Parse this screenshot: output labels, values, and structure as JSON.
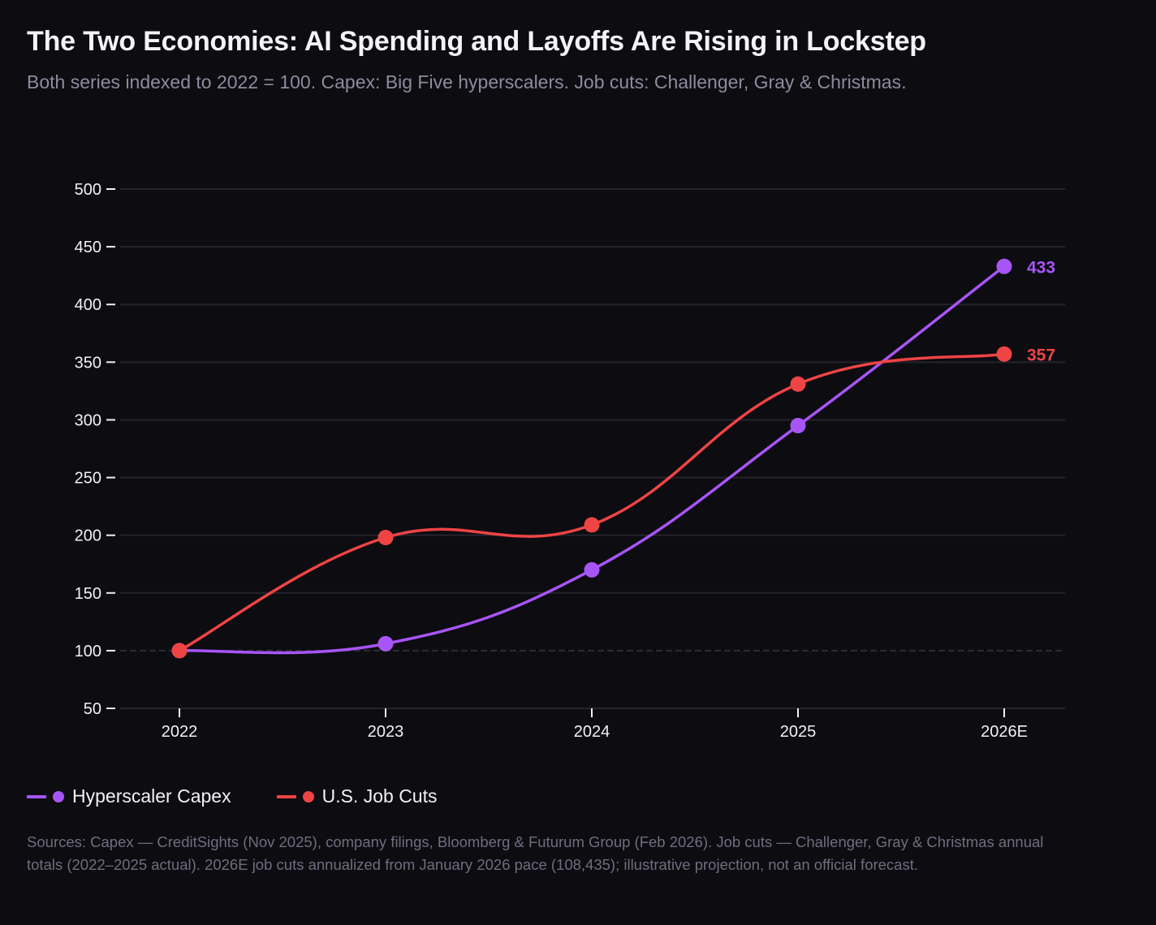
{
  "header": {
    "title": "The Two Economies: AI Spending and Layoffs Are Rising in Lockstep",
    "subtitle": "Both series indexed to 2022 = 100. Capex: Big Five hyperscalers. Job cuts: Challenger, Gray & Christmas."
  },
  "colors": {
    "background": "#0c0c11",
    "capex": "#a855f7",
    "job_cuts": "#ef4444",
    "grid": "#24242c",
    "axis_text": "#f2f2f5",
    "muted_text": "#8c8c9e"
  },
  "legend": {
    "items": [
      {
        "label": "Hyperscaler Capex",
        "color": "#a855f7"
      },
      {
        "label": "U.S. Job Cuts",
        "color": "#ef4444"
      }
    ]
  },
  "footer": {
    "sources": "Sources: Capex — CreditSights (Nov 2025), company filings, Bloomberg & Futurum Group (Feb 2026). Job cuts — Challenger, Gray & Christmas annual totals (2022–2025 actual). 2026E job cuts annualized from January 2026 pace (108,435); illustrative projection, not an official forecast."
  },
  "chart_data": {
    "type": "line",
    "title": "The Two Economies: AI Spending and Layoffs Are Rising in Lockstep",
    "subtitle": "Both series indexed to 2022 = 100. Capex: Big Five hyperscalers. Job cuts: Challenger, Gray & Christmas.",
    "xlabel": "",
    "ylabel": "",
    "categories": [
      "2022",
      "2023",
      "2024",
      "2025",
      "2026E"
    ],
    "ylim": [
      50,
      500
    ],
    "yticks": [
      50,
      100,
      150,
      200,
      250,
      300,
      350,
      400,
      450,
      500
    ],
    "baseline": 100,
    "grid": true,
    "legend_position": "bottom-left",
    "series": [
      {
        "name": "Hyperscaler Capex",
        "color": "#a855f7",
        "values": [
          100,
          106,
          170,
          295,
          433
        ],
        "end_label": "433"
      },
      {
        "name": "U.S. Job Cuts",
        "color": "#ef4444",
        "values": [
          100,
          198,
          209,
          331,
          357
        ],
        "end_label": "357"
      }
    ]
  }
}
